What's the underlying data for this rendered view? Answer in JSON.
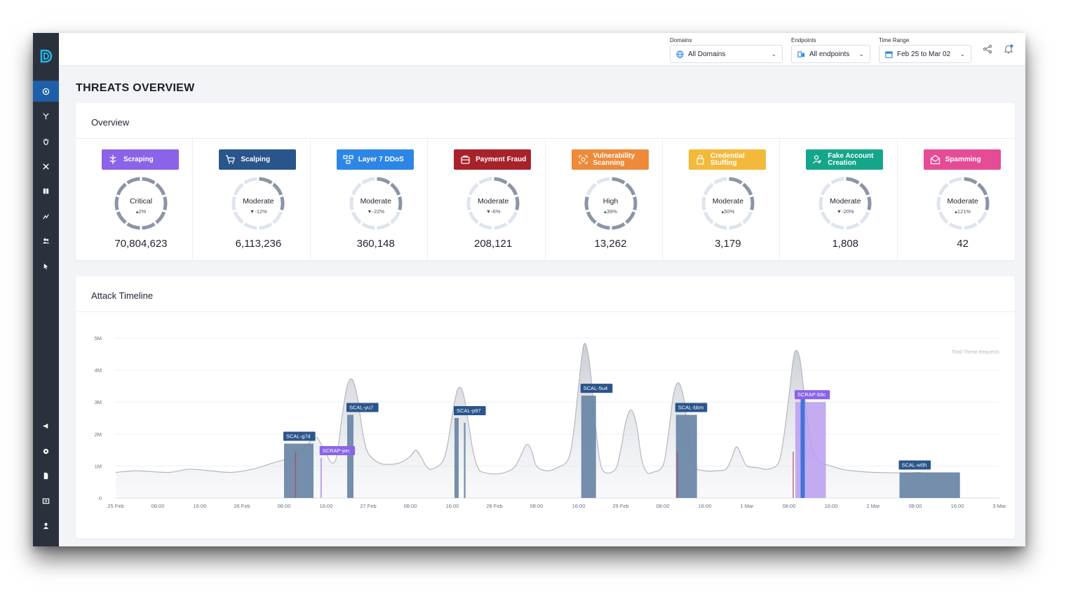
{
  "topbar": {
    "domains": {
      "label": "Domains",
      "value": "All Domains"
    },
    "endpoints": {
      "label": "Endpoints",
      "value": "All endpoints"
    },
    "time_range": {
      "label": "Time Range",
      "value": "Feb 25 to Mar 02"
    }
  },
  "page_title": "THREATS OVERVIEW",
  "overview": {
    "title": "Overview",
    "tiles": [
      {
        "name": "Scraping",
        "level": "Critical",
        "delta": "▴2%",
        "count": "70,804,623",
        "color": "#8b63e8"
      },
      {
        "name": "Scalping",
        "level": "Moderate",
        "delta": "▼-12%",
        "count": "6,113,236",
        "color": "#2a558c"
      },
      {
        "name": "Layer 7 DDoS",
        "level": "Moderate",
        "delta": "▼-22%",
        "count": "360,148",
        "color": "#2d86e6"
      },
      {
        "name": "Payment Fraud",
        "level": "Moderate",
        "delta": "▼-6%",
        "count": "208,121",
        "color": "#a8222b"
      },
      {
        "name": "Vulnerability Scanning",
        "level": "High",
        "delta": "▴39%",
        "count": "13,262",
        "color": "#ee8a3a"
      },
      {
        "name": "Credential Stuffing",
        "level": "Moderate",
        "delta": "▴50%",
        "count": "3,179",
        "color": "#f2b93b"
      },
      {
        "name": "Fake Account Creation",
        "level": "Moderate",
        "delta": "▼-20%",
        "count": "1,808",
        "color": "#15a58a"
      },
      {
        "name": "Spamming",
        "level": "Moderate",
        "delta": "▴121%",
        "count": "42",
        "color": "#e64b96"
      }
    ]
  },
  "timeline": {
    "title": "Attack Timeline"
  },
  "chart_data": {
    "type": "area",
    "title": "Attack Timeline",
    "legend": "Total Threat Requests",
    "ylim": [
      0,
      5000000
    ],
    "yticks": [
      "0",
      "1M",
      "2M",
      "3M",
      "4M",
      "5M"
    ],
    "xticks": [
      "25 Feb",
      "08:00",
      "16:00",
      "26 Feb",
      "08:00",
      "16:00",
      "27 Feb",
      "08:00",
      "16:00",
      "28 Feb",
      "08:00",
      "16:00",
      "29 Feb",
      "08:00",
      "16:00",
      "1 Mar",
      "08:00",
      "16:00",
      "2 Mar",
      "08:00",
      "16:00",
      "3 Mar"
    ],
    "x_hours": [
      0,
      8,
      16,
      24,
      32,
      40,
      48,
      56,
      64,
      72,
      80,
      88,
      96,
      104,
      112,
      120,
      128,
      136,
      144,
      152,
      160,
      168
    ],
    "series": [
      {
        "name": "Total Threat Requests",
        "points": [
          [
            0,
            0.8
          ],
          [
            4,
            0.85
          ],
          [
            10,
            0.8
          ],
          [
            14,
            0.9
          ],
          [
            18,
            0.85
          ],
          [
            22,
            0.8
          ],
          [
            26,
            0.9
          ],
          [
            30,
            1.1
          ],
          [
            34,
            1.3
          ],
          [
            36,
            1.6
          ],
          [
            38,
            1.9
          ],
          [
            39,
            1.7
          ],
          [
            40,
            1.4
          ],
          [
            41,
            1.1
          ],
          [
            42,
            1.3
          ],
          [
            43,
            2.5
          ],
          [
            44,
            3.5
          ],
          [
            45,
            3.7
          ],
          [
            46,
            3.1
          ],
          [
            47,
            2.0
          ],
          [
            48,
            1.4
          ],
          [
            50,
            1.1
          ],
          [
            52,
            1.05
          ],
          [
            54,
            1.1
          ],
          [
            56,
            1.3
          ],
          [
            57,
            1.5
          ],
          [
            58,
            1.3
          ],
          [
            59,
            1.0
          ],
          [
            60,
            0.9
          ],
          [
            62,
            1.1
          ],
          [
            63,
            1.6
          ],
          [
            64,
            2.6
          ],
          [
            65,
            3.4
          ],
          [
            66,
            3.3
          ],
          [
            67,
            2.4
          ],
          [
            68,
            1.4
          ],
          [
            69,
            0.9
          ],
          [
            70,
            0.8
          ],
          [
            72,
            0.75
          ],
          [
            74,
            0.8
          ],
          [
            76,
            1.0
          ],
          [
            78,
            1.65
          ],
          [
            79,
            1.5
          ],
          [
            80,
            1.0
          ],
          [
            82,
            0.85
          ],
          [
            84,
            0.95
          ],
          [
            86,
            1.2
          ],
          [
            87,
            2.0
          ],
          [
            88,
            3.5
          ],
          [
            89,
            4.8
          ],
          [
            90,
            4.3
          ],
          [
            91,
            2.6
          ],
          [
            92,
            1.2
          ],
          [
            93,
            0.8
          ],
          [
            95,
            0.9
          ],
          [
            96,
            1.5
          ],
          [
            97,
            2.4
          ],
          [
            98,
            2.75
          ],
          [
            99,
            2.3
          ],
          [
            100,
            1.2
          ],
          [
            101,
            0.8
          ],
          [
            102,
            0.8
          ],
          [
            104,
            1.0
          ],
          [
            105,
            1.9
          ],
          [
            106,
            3.2
          ],
          [
            107,
            3.6
          ],
          [
            108,
            3.1
          ],
          [
            109,
            1.8
          ],
          [
            110,
            1.0
          ],
          [
            112,
            0.85
          ],
          [
            114,
            0.85
          ],
          [
            116,
            0.9
          ],
          [
            117,
            1.2
          ],
          [
            118,
            1.6
          ],
          [
            119,
            1.3
          ],
          [
            120,
            1.0
          ],
          [
            122,
            0.95
          ],
          [
            124,
            0.9
          ],
          [
            126,
            1.1
          ],
          [
            127,
            1.9
          ],
          [
            128,
            3.2
          ],
          [
            129,
            4.5
          ],
          [
            130,
            4.4
          ],
          [
            131,
            3.1
          ],
          [
            132,
            1.9
          ],
          [
            133,
            1.3
          ],
          [
            134,
            1.1
          ],
          [
            135,
            1.05
          ],
          [
            136,
            1.0
          ],
          [
            138,
            0.9
          ],
          [
            140,
            0.85
          ],
          [
            144,
            0.8
          ],
          [
            150,
            0.78
          ],
          [
            154,
            0.75
          ],
          [
            158,
            0.2
          ],
          [
            159,
            0
          ]
        ]
      }
    ],
    "bars": [
      {
        "label": "SCAL-g7d",
        "start": 32,
        "end": 37.6,
        "value": 1.7,
        "type": "scalping"
      },
      {
        "label": "SCRAP-jon",
        "start": 38.9,
        "end": 39.2,
        "value": 1.25,
        "type": "scraping"
      },
      {
        "label": "SCAL-yu7",
        "start": 44,
        "end": 45.2,
        "value": 2.6,
        "type": "scalping"
      },
      {
        "label": "SCAL-p97",
        "start": 64.4,
        "end": 65.2,
        "value": 2.5,
        "type": "scalping"
      },
      {
        "label": "",
        "start": 66.2,
        "end": 66.5,
        "value": 2.35,
        "type": "scalping"
      },
      {
        "label": "SCAL-5u4",
        "start": 88.5,
        "end": 91.3,
        "value": 3.2,
        "type": "scalping"
      },
      {
        "label": "SCAL-bbm",
        "start": 106.5,
        "end": 110.5,
        "value": 2.6,
        "type": "scalping"
      },
      {
        "label": "SCRAP-b9c",
        "start": 129.2,
        "end": 135,
        "value": 3.0,
        "type": "scraping"
      },
      {
        "label": "",
        "start": 130.2,
        "end": 131,
        "value": 3.2,
        "type": "scalping-blue"
      },
      {
        "label": "SCAL-w5h",
        "start": 149,
        "end": 160.5,
        "value": 0.8,
        "type": "scalping"
      }
    ],
    "markers": [
      34.2,
      106.8,
      128.8
    ],
    "value_unit": "M requests"
  }
}
